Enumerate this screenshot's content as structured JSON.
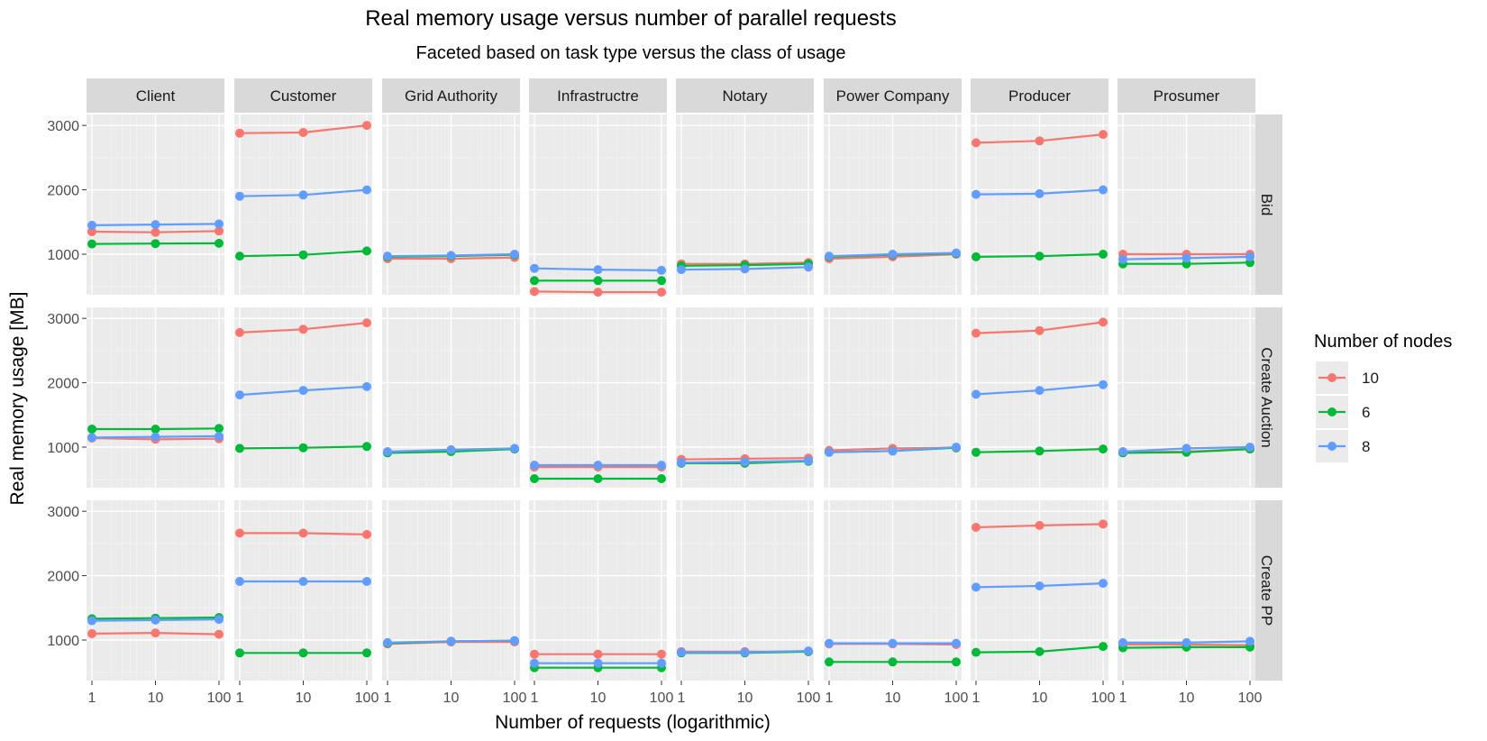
{
  "chart_data": {
    "type": "line",
    "title": "Real memory usage versus number of parallel requests",
    "subtitle": "Faceted based on task type versus the class of usage",
    "xlabel": "Number of requests (logarithmic)",
    "ylabel": "Real memory usage [MB]",
    "x_scale": "log10",
    "x_values": [
      1,
      10,
      100
    ],
    "x_tick_labels": [
      "1",
      "10",
      "100"
    ],
    "y_ticks": [
      1000,
      2000,
      3000
    ],
    "y_tick_labels": [
      "1000",
      "2000",
      "3000"
    ],
    "ylim": [
      370,
      3170
    ],
    "columns": [
      "Client",
      "Customer",
      "Grid Authority",
      "Infrastructre",
      "Notary",
      "Power Company",
      "Producer",
      "Prosumer"
    ],
    "rows": [
      "Bid",
      "Create Auction",
      "Create PP"
    ],
    "legend": {
      "title": "Number of nodes",
      "position": "right",
      "entries": [
        "10",
        "6",
        "8"
      ],
      "colors": [
        "#F8766D",
        "#00BA38",
        "#619CFF"
      ]
    },
    "facets": {
      "Bid": {
        "Client": {
          "10": [
            1350,
            1340,
            1360
          ],
          "6": [
            1160,
            1165,
            1170
          ],
          "8": [
            1450,
            1460,
            1470
          ]
        },
        "Customer": {
          "10": [
            2880,
            2890,
            3000
          ],
          "6": [
            970,
            990,
            1050
          ],
          "8": [
            1900,
            1920,
            2000
          ]
        },
        "Grid Authority": {
          "10": [
            930,
            930,
            950
          ],
          "6": [
            960,
            970,
            990
          ],
          "8": [
            970,
            980,
            1000
          ]
        },
        "Infrastructre": {
          "10": [
            420,
            410,
            410
          ],
          "6": [
            590,
            590,
            590
          ],
          "8": [
            780,
            760,
            750
          ]
        },
        "Notary": {
          "10": [
            850,
            850,
            870
          ],
          "6": [
            820,
            830,
            850
          ],
          "8": [
            760,
            770,
            800
          ]
        },
        "Power Company": {
          "10": [
            930,
            960,
            1000
          ],
          "6": [
            960,
            990,
            1010
          ],
          "8": [
            970,
            1000,
            1020
          ]
        },
        "Producer": {
          "10": [
            2730,
            2760,
            2860
          ],
          "6": [
            960,
            970,
            1000
          ],
          "8": [
            1930,
            1940,
            2000
          ]
        },
        "Prosumer": {
          "10": [
            1000,
            1000,
            1000
          ],
          "6": [
            850,
            850,
            870
          ],
          "8": [
            920,
            940,
            960
          ]
        }
      },
      "Create Auction": {
        "Client": {
          "10": [
            1140,
            1120,
            1130
          ],
          "6": [
            1280,
            1280,
            1290
          ],
          "8": [
            1150,
            1160,
            1170
          ]
        },
        "Customer": {
          "10": [
            2780,
            2830,
            2930
          ],
          "6": [
            980,
            990,
            1010
          ],
          "8": [
            1810,
            1880,
            1940
          ]
        },
        "Grid Authority": {
          "10": [
            920,
            950,
            970
          ],
          "6": [
            910,
            930,
            970
          ],
          "8": [
            930,
            960,
            980
          ]
        },
        "Infrastructre": {
          "10": [
            690,
            690,
            690
          ],
          "6": [
            510,
            510,
            510
          ],
          "8": [
            720,
            720,
            720
          ]
        },
        "Notary": {
          "10": [
            810,
            820,
            830
          ],
          "6": [
            750,
            750,
            780
          ],
          "8": [
            760,
            770,
            790
          ]
        },
        "Power Company": {
          "10": [
            950,
            980,
            990
          ],
          "6": [
            920,
            940,
            990
          ],
          "8": [
            920,
            940,
            1000
          ]
        },
        "Producer": {
          "10": [
            2770,
            2810,
            2940
          ],
          "6": [
            920,
            940,
            970
          ],
          "8": [
            1820,
            1880,
            1970
          ]
        },
        "Prosumer": {
          "10": [
            920,
            930,
            970
          ],
          "6": [
            910,
            920,
            970
          ],
          "8": [
            930,
            980,
            1000
          ]
        }
      },
      "Create PP": {
        "Client": {
          "10": [
            1100,
            1110,
            1090
          ],
          "6": [
            1330,
            1340,
            1350
          ],
          "8": [
            1300,
            1310,
            1320
          ]
        },
        "Customer": {
          "10": [
            2660,
            2660,
            2640
          ],
          "6": [
            800,
            800,
            800
          ],
          "8": [
            1910,
            1910,
            1910
          ]
        },
        "Grid Authority": {
          "10": [
            940,
            970,
            970
          ],
          "6": [
            950,
            980,
            990
          ],
          "8": [
            960,
            980,
            990
          ]
        },
        "Infrastructre": {
          "10": [
            780,
            780,
            780
          ],
          "6": [
            570,
            570,
            570
          ],
          "8": [
            640,
            640,
            640
          ]
        },
        "Notary": {
          "10": [
            820,
            820,
            820
          ],
          "6": [
            800,
            800,
            820
          ],
          "8": [
            810,
            810,
            830
          ]
        },
        "Power Company": {
          "10": [
            940,
            940,
            930
          ],
          "6": [
            660,
            660,
            660
          ],
          "8": [
            950,
            950,
            950
          ]
        },
        "Producer": {
          "10": [
            2750,
            2780,
            2800
          ],
          "6": [
            810,
            820,
            900
          ],
          "8": [
            1820,
            1840,
            1880
          ]
        },
        "Prosumer": {
          "10": [
            930,
            930,
            920
          ],
          "6": [
            880,
            890,
            890
          ],
          "8": [
            960,
            960,
            980
          ]
        }
      }
    }
  }
}
